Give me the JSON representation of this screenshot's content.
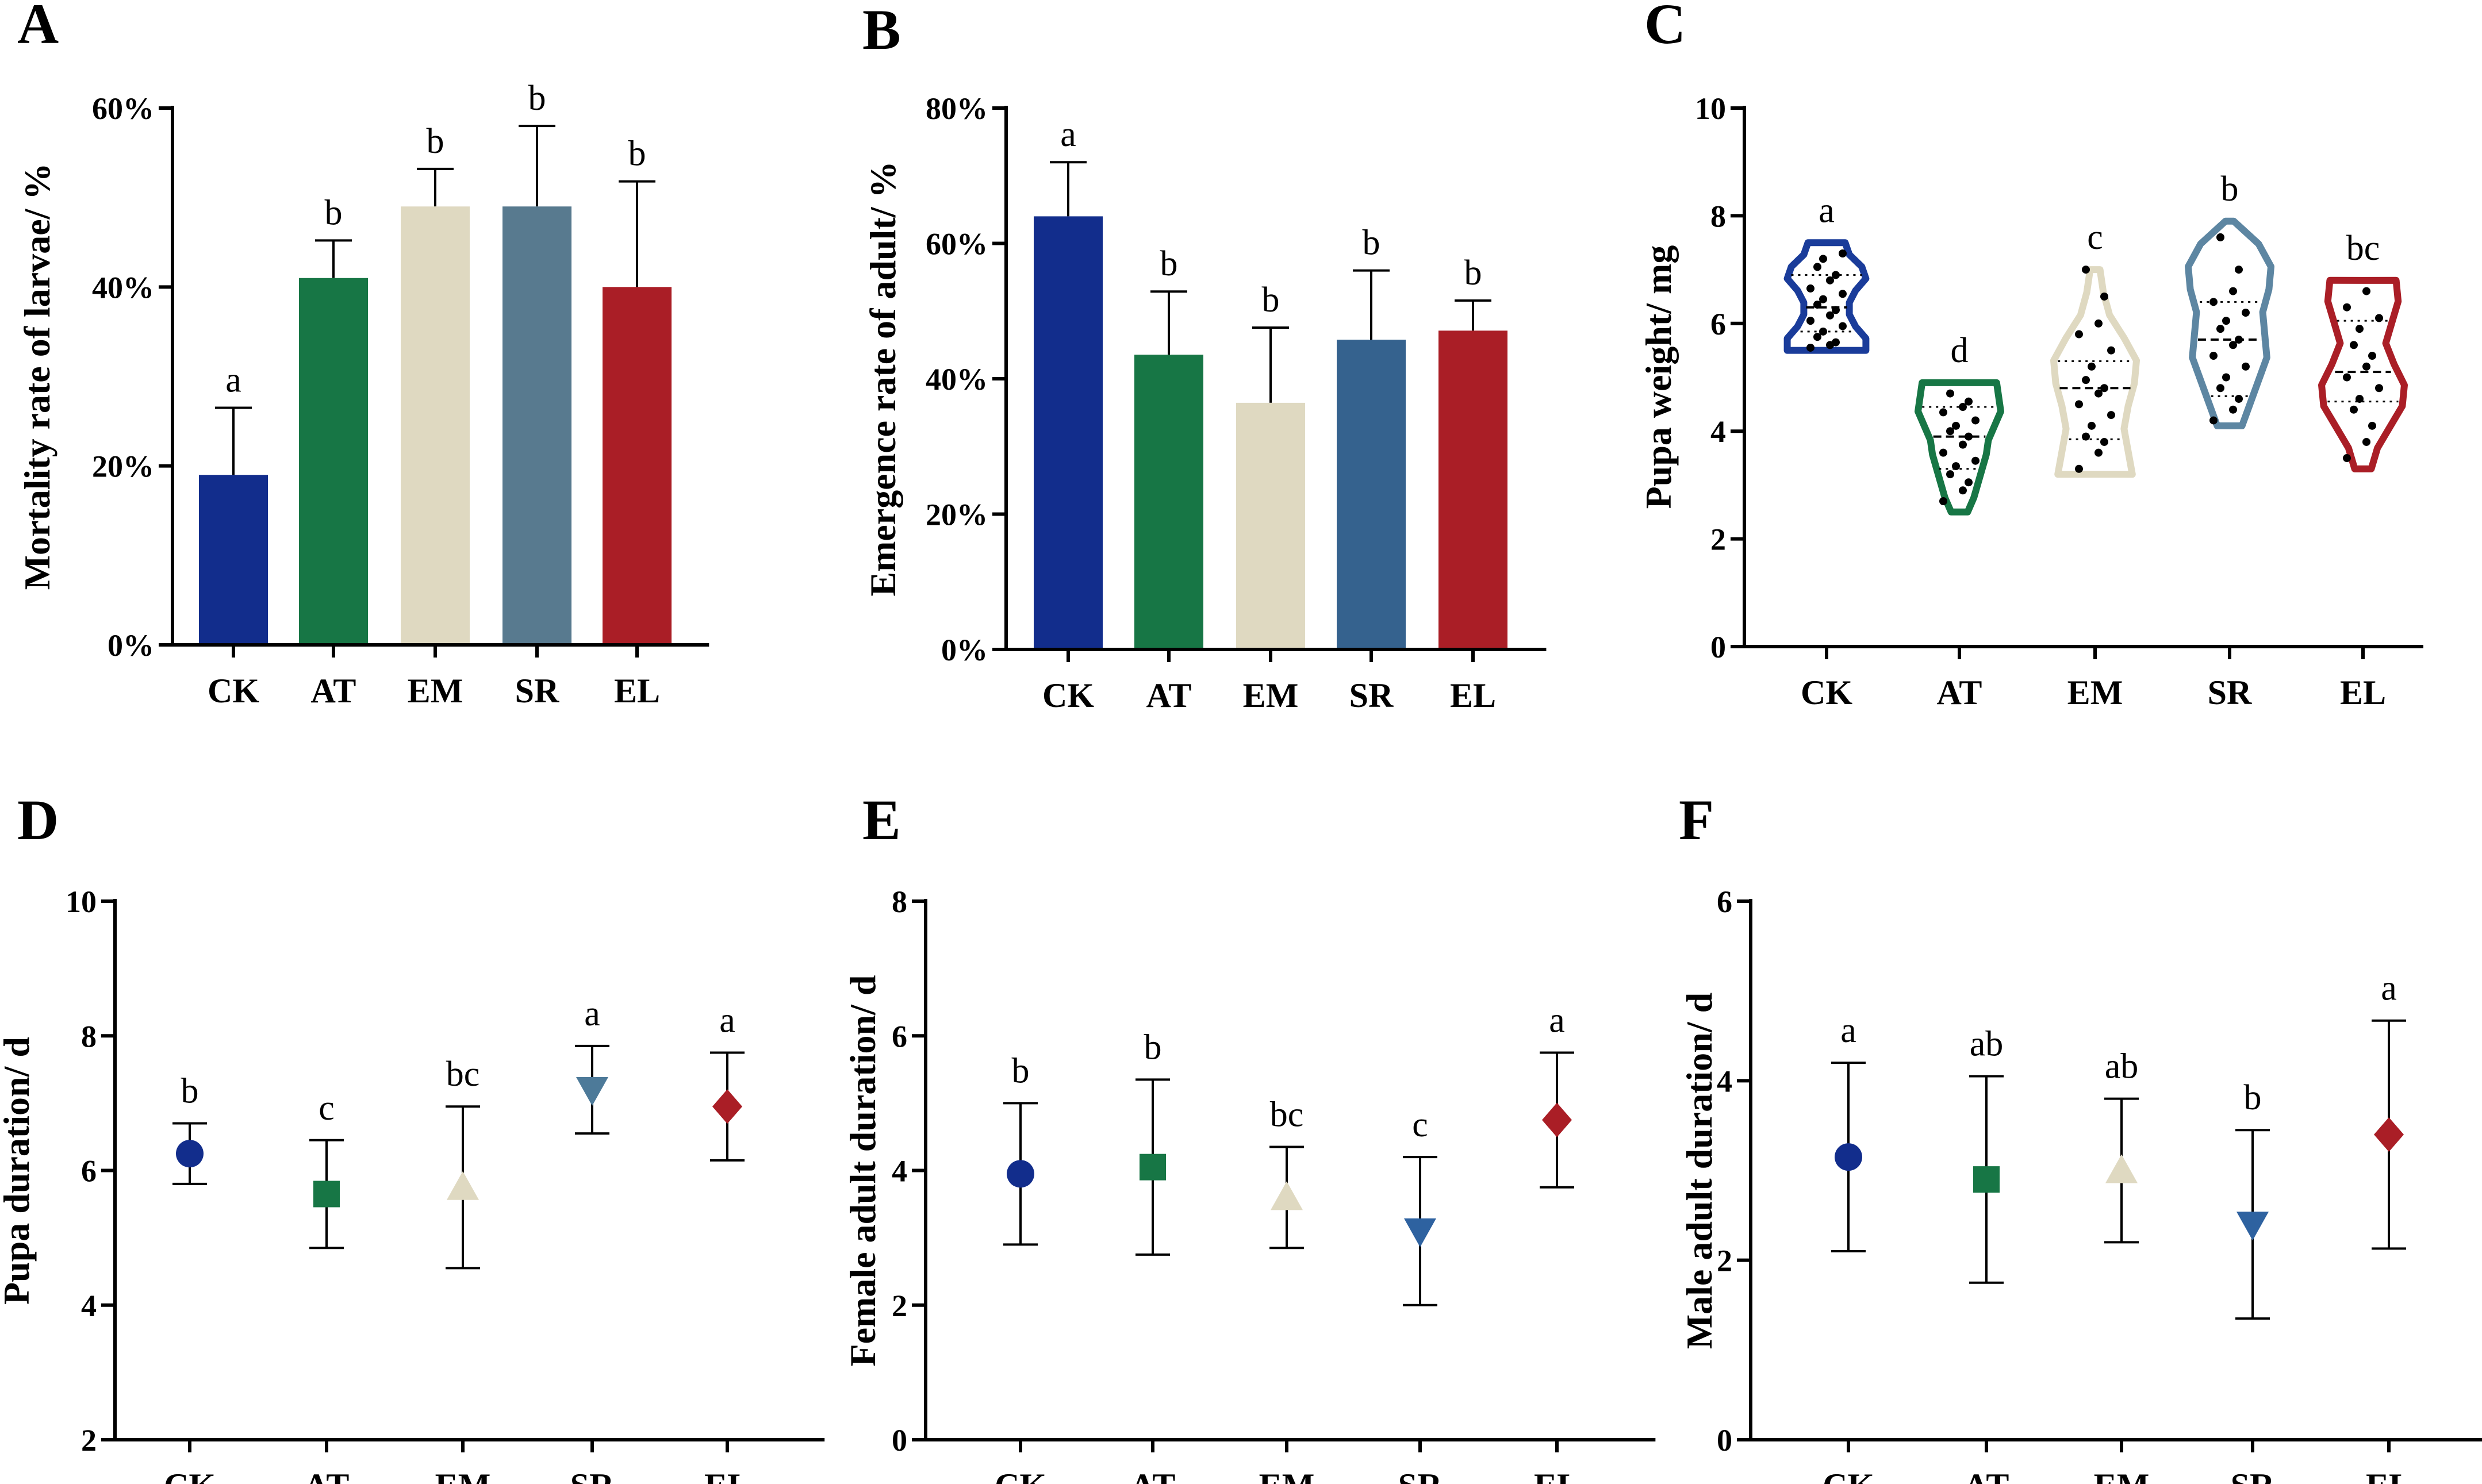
{
  "chart_data": [
    {
      "panel": "A",
      "type": "bar",
      "ylabel": "Mortality rate of larvae/ %",
      "categories": [
        "CK",
        "AT",
        "EM",
        "SR",
        "EL"
      ],
      "values": [
        19,
        41,
        49,
        49,
        40
      ],
      "errors": [
        7.5,
        4.2,
        4.2,
        9,
        11.8
      ],
      "letters": [
        "a",
        "b",
        "b",
        "b",
        "b"
      ],
      "colors": [
        "#122d8c",
        "#177645",
        "#dfd9c1",
        "#587a8f",
        "#aa1e26"
      ],
      "ylim": [
        0,
        60
      ],
      "yticks": [
        "0%",
        "20%",
        "40%",
        "60%"
      ]
    },
    {
      "panel": "B",
      "type": "bar",
      "ylabel": "Emergence rate of adult/ %",
      "categories": [
        "CK",
        "AT",
        "EM",
        "SR",
        "EL"
      ],
      "values": [
        72,
        49,
        41,
        51.5,
        53
      ],
      "errors": [
        9,
        10.5,
        12.5,
        11.5,
        5
      ],
      "letters": [
        "a",
        "b",
        "b",
        "b",
        "b"
      ],
      "colors": [
        "#122d8c",
        "#177645",
        "#dfd9c1",
        "#35628e",
        "#aa1e26"
      ],
      "ylim": [
        0,
        90
      ],
      "yticks": [
        "0%",
        "20%",
        "40%",
        "60%",
        "80%"
      ]
    },
    {
      "panel": "C",
      "type": "violin",
      "ylabel": "Pupa weight/ mg",
      "categories": [
        "CK",
        "AT",
        "EM",
        "SR",
        "EL"
      ],
      "ranges": [
        [
          5.5,
          7.5
        ],
        [
          2.5,
          4.9
        ],
        [
          3.2,
          7.0
        ],
        [
          4.1,
          7.9
        ],
        [
          3.3,
          6.8
        ]
      ],
      "medians": [
        6.3,
        3.9,
        4.8,
        5.7,
        5.1
      ],
      "quartiles": [
        [
          5.85,
          6.9
        ],
        [
          3.3,
          4.45
        ],
        [
          3.85,
          5.3
        ],
        [
          4.65,
          6.4
        ],
        [
          4.55,
          6.05
        ]
      ],
      "points": [
        [
          5.55,
          5.6,
          5.65,
          5.75,
          5.85,
          5.95,
          6.05,
          6.15,
          6.25,
          6.35,
          6.45,
          6.55,
          6.65,
          6.8,
          6.9,
          7.05,
          7.2,
          7.3
        ],
        [
          2.7,
          2.9,
          3.05,
          3.2,
          3.35,
          3.45,
          3.6,
          3.75,
          3.9,
          4.0,
          4.1,
          4.2,
          4.35,
          4.45,
          4.55,
          4.7
        ],
        [
          3.3,
          3.6,
          3.8,
          3.9,
          4.1,
          4.3,
          4.5,
          4.7,
          4.8,
          4.95,
          5.2,
          5.5,
          5.8,
          6.0,
          6.5,
          7.0
        ],
        [
          4.2,
          4.4,
          4.6,
          4.8,
          5.0,
          5.2,
          5.4,
          5.6,
          5.7,
          5.9,
          6.05,
          6.2,
          6.4,
          6.6,
          7.0,
          7.6
        ],
        [
          3.5,
          3.8,
          4.1,
          4.4,
          4.6,
          4.8,
          5.0,
          5.2,
          5.4,
          5.6,
          5.9,
          6.1,
          6.3,
          6.6
        ]
      ],
      "letters": [
        "a",
        "d",
        "c",
        "b",
        "bc"
      ],
      "colors": [
        "#1a3c9a",
        "#177645",
        "#dfd9c1",
        "#5d86a2",
        "#aa1e26"
      ],
      "ylim": [
        0,
        10
      ],
      "yticks": [
        "0",
        "2",
        "4",
        "6",
        "8",
        "10"
      ]
    },
    {
      "panel": "D",
      "type": "scatter",
      "ylabel": "Pupa duration/ d",
      "categories": [
        "CK",
        "AT",
        "EM",
        "SR",
        "EL"
      ],
      "values": [
        6.25,
        5.65,
        5.75,
        7.2,
        6.95
      ],
      "errors": [
        0.45,
        0.8,
        1.2,
        0.65,
        0.8
      ],
      "markers": [
        "circle",
        "square",
        "triangle-up",
        "triangle-down",
        "diamond"
      ],
      "letters": [
        "b",
        "c",
        "bc",
        "a",
        "a"
      ],
      "colors": [
        "#122d8c",
        "#177645",
        "#dfd9c1",
        "#4d7a99",
        "#aa1e26"
      ],
      "ylim": [
        2,
        10
      ],
      "yticks": [
        "2",
        "4",
        "6",
        "8",
        "10"
      ]
    },
    {
      "panel": "E",
      "type": "scatter",
      "ylabel": "Female adult duration/ d",
      "categories": [
        "CK",
        "AT",
        "EM",
        "SR",
        "EL"
      ],
      "values": [
        3.95,
        4.05,
        3.6,
        3.1,
        4.75
      ],
      "errors": [
        1.05,
        1.3,
        0.75,
        1.1,
        1.0
      ],
      "markers": [
        "circle",
        "square",
        "triangle-up",
        "triangle-down",
        "diamond"
      ],
      "letters": [
        "b",
        "b",
        "bc",
        "c",
        "a"
      ],
      "colors": [
        "#122d8c",
        "#177645",
        "#dfd9c1",
        "#2e62a0",
        "#aa1e26"
      ],
      "ylim": [
        0,
        8
      ],
      "yticks": [
        "0",
        "2",
        "4",
        "6",
        "8"
      ]
    },
    {
      "panel": "F",
      "type": "scatter",
      "ylabel": "Male adult duration/ d",
      "categories": [
        "CK",
        "AT",
        "EM",
        "SR",
        "EL"
      ],
      "values": [
        3.15,
        2.9,
        3.0,
        2.4,
        3.4
      ],
      "errors": [
        1.05,
        1.15,
        0.8,
        1.05,
        1.27
      ],
      "markers": [
        "circle",
        "square",
        "triangle-up",
        "triangle-down",
        "diamond"
      ],
      "letters": [
        "a",
        "ab",
        "ab",
        "b",
        "a"
      ],
      "colors": [
        "#122d8c",
        "#177645",
        "#dfd9c1",
        "#2e62a0",
        "#aa1e26"
      ],
      "ylim": [
        0,
        6
      ],
      "yticks": [
        "0",
        "2",
        "4",
        "6"
      ]
    }
  ]
}
